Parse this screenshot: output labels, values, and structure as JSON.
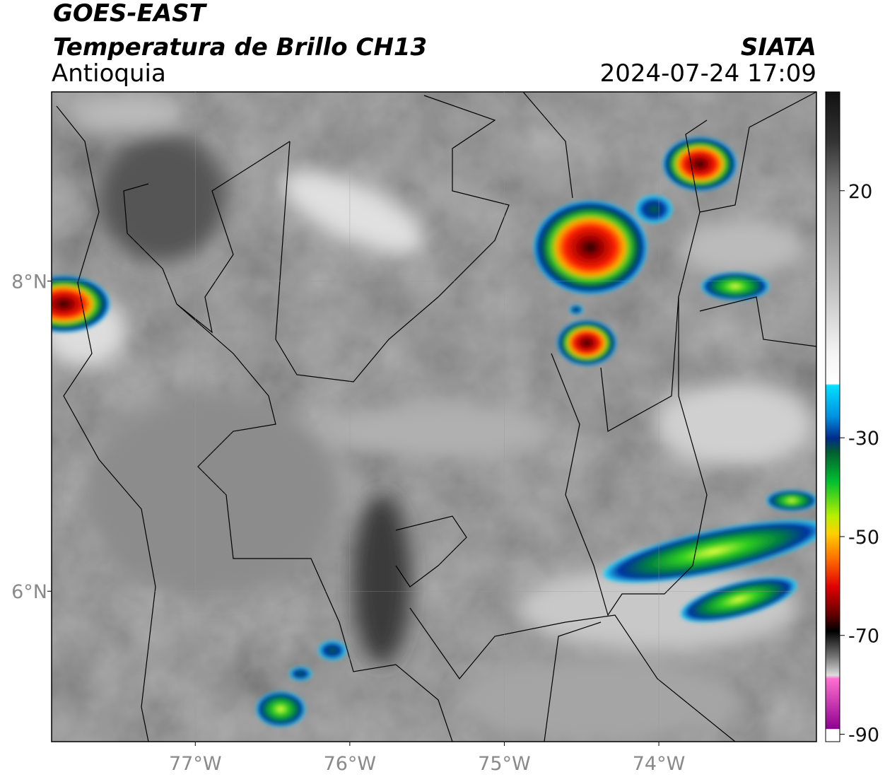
{
  "header": {
    "title": "GOES-EAST",
    "subtitle": "Temperatura de Brillo CH13",
    "region": "Antioquia",
    "source": "SIATA",
    "datetime": "2024-07-24 17:09"
  },
  "map": {
    "xlim": [
      -77.93,
      -72.98
    ],
    "ylim": [
      5.03,
      9.22
    ],
    "xticks": [
      {
        "value": -77,
        "label": "77°W"
      },
      {
        "value": -76,
        "label": "76°W"
      },
      {
        "value": -75,
        "label": "75°W"
      },
      {
        "value": -74,
        "label": "74°W"
      }
    ],
    "yticks": [
      {
        "value": 6,
        "label": "6°N"
      },
      {
        "value": 8,
        "label": "8°N"
      }
    ],
    "grid": true
  },
  "colorbar": {
    "lim": [
      -91.5,
      40
    ],
    "ticks": [
      20,
      -30,
      -50,
      -70,
      -90
    ]
  }
}
